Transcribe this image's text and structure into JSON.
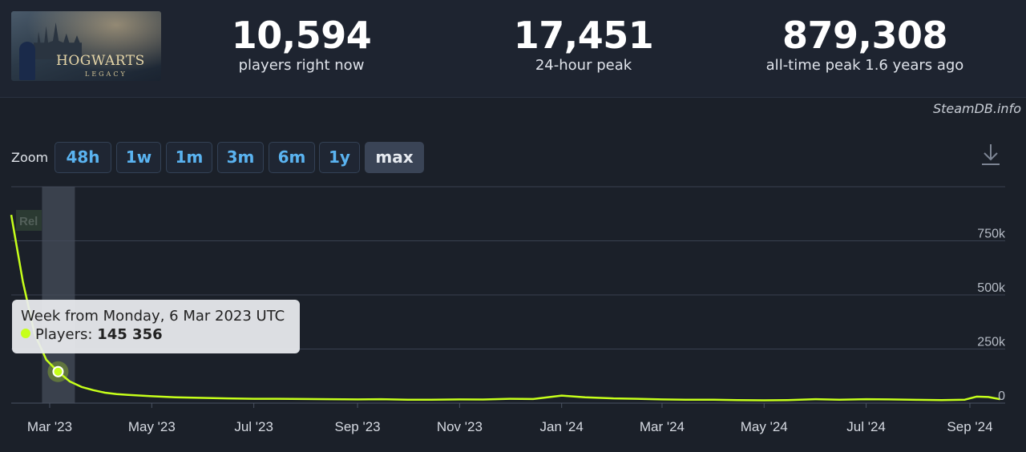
{
  "header": {
    "banner_logo_text": "HOGWARTS",
    "banner_logo_sub": "LEGACY",
    "stats": [
      {
        "value": "10,594",
        "label": "players right now"
      },
      {
        "value": "17,451",
        "label": "24-hour peak"
      },
      {
        "value": "879,308",
        "label": "all-time peak 1.6 years ago"
      }
    ],
    "attribution": "SteamDB.info"
  },
  "zoom": {
    "label": "Zoom",
    "buttons": [
      "48h",
      "1w",
      "1m",
      "3m",
      "6m",
      "1y",
      "max"
    ],
    "active": "max"
  },
  "colors": {
    "line": "#c6ff1a",
    "grid": "#3a4150",
    "accent": "#5ab3f0"
  },
  "chart_data": {
    "type": "line",
    "series": [
      {
        "name": "Players",
        "x": [
          "2023-02-06",
          "2023-02-13",
          "2023-02-20",
          "2023-02-27",
          "2023-03-06",
          "2023-03-13",
          "2023-03-20",
          "2023-03-27",
          "2023-04-03",
          "2023-04-10",
          "2023-04-17",
          "2023-05-01",
          "2023-05-15",
          "2023-06-01",
          "2023-06-15",
          "2023-07-01",
          "2023-07-15",
          "2023-08-01",
          "2023-08-15",
          "2023-09-01",
          "2023-09-15",
          "2023-10-01",
          "2023-10-15",
          "2023-11-01",
          "2023-11-15",
          "2023-12-01",
          "2023-12-15",
          "2024-01-01",
          "2024-01-15",
          "2024-02-01",
          "2024-02-15",
          "2024-03-01",
          "2024-03-15",
          "2024-04-01",
          "2024-04-15",
          "2024-05-01",
          "2024-05-15",
          "2024-06-01",
          "2024-06-15",
          "2024-07-01",
          "2024-07-15",
          "2024-08-01",
          "2024-08-15",
          "2024-08-29",
          "2024-09-05",
          "2024-09-12",
          "2024-09-19"
        ],
        "values": [
          870000,
          560000,
          320000,
          200000,
          145356,
          100000,
          75000,
          60000,
          48000,
          42000,
          38000,
          32000,
          27000,
          24000,
          22000,
          20000,
          20000,
          19000,
          18000,
          17000,
          18000,
          16000,
          15500,
          17000,
          16500,
          20000,
          19000,
          35000,
          27000,
          22000,
          20000,
          17000,
          16000,
          16000,
          14000,
          13000,
          14000,
          18000,
          16000,
          18000,
          17000,
          15000,
          14000,
          16000,
          30000,
          28000,
          18000
        ]
      }
    ],
    "tick_labels_x": [
      "Mar '23",
      "May '23",
      "Jul '23",
      "Sep '23",
      "Nov '23",
      "Jan '24",
      "Mar '24",
      "May '24",
      "Jul '24",
      "Sep '24"
    ],
    "tick_dates_x": [
      "2023-03-01",
      "2023-05-01",
      "2023-07-01",
      "2023-09-01",
      "2023-11-01",
      "2024-01-01",
      "2024-03-01",
      "2024-05-01",
      "2024-07-01",
      "2024-09-01"
    ],
    "tick_labels_y": [
      "0",
      "250k",
      "500k",
      "750k"
    ],
    "tick_values_y": [
      0,
      250000,
      500000,
      750000
    ],
    "ylim": [
      0,
      1000000
    ],
    "xlim": [
      "2023-02-06",
      "2024-09-24"
    ],
    "grid": true,
    "annotation_label": "Rel",
    "highlight_week": "2023-03-06",
    "tooltip": {
      "title": "Week from Monday, 6 Mar 2023 UTC",
      "series_label": "Players:",
      "value": "145 356"
    }
  }
}
